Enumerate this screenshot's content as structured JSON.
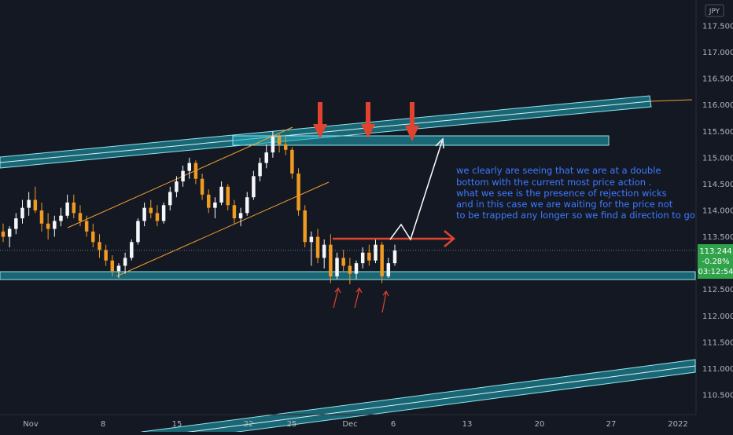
{
  "currency": "JPY",
  "price_badge": {
    "price": "113.244",
    "change": "-0.28%",
    "countdown": "03:12:54"
  },
  "annotation_lines": [
    "we clearly are seeing that we are at a double",
    " bottom with the current most price action .",
    " what we see is the presence of rejection wicks",
    "and in this case we are waiting for the price not",
    "to be trapped any longer so we  find a direction to go"
  ],
  "chart_data": {
    "type": "candlestick",
    "ylim": [
      110.3,
      117.75
    ],
    "y_ticks": [
      110.5,
      111.0,
      111.5,
      112.0,
      112.5,
      113.0,
      113.5,
      114.0,
      114.5,
      115.0,
      115.5,
      116.0,
      116.5,
      117.0,
      117.5
    ],
    "x_ticks": [
      "Nov",
      "8",
      "15",
      "22",
      "25",
      "Dec",
      "6",
      "13",
      "20",
      "27",
      "2022"
    ],
    "last_price": 113.244,
    "colors": {
      "up": "#f5f7fa",
      "down": "#f09a22",
      "zone": "#1fa7b8",
      "trendline": "#f0a030",
      "arrow_red": "#e0442f",
      "arrow_white": "#ffffff",
      "badge": "#2fa24a"
    },
    "candles": [
      [
        113.6,
        113.75,
        113.4,
        113.5
      ],
      [
        113.5,
        113.7,
        113.3,
        113.65
      ],
      [
        113.65,
        113.95,
        113.55,
        113.85
      ],
      [
        113.85,
        114.2,
        113.75,
        114.05
      ],
      [
        114.05,
        114.35,
        113.9,
        114.2
      ],
      [
        114.2,
        114.45,
        113.95,
        114.0
      ],
      [
        114.0,
        114.15,
        113.6,
        113.75
      ],
      [
        113.75,
        113.95,
        113.45,
        113.65
      ],
      [
        113.65,
        113.9,
        113.5,
        113.8
      ],
      [
        113.8,
        114.05,
        113.7,
        113.9
      ],
      [
        113.9,
        114.3,
        113.85,
        114.15
      ],
      [
        114.15,
        114.3,
        113.85,
        113.95
      ],
      [
        113.95,
        114.1,
        113.7,
        113.8
      ],
      [
        113.8,
        113.9,
        113.5,
        113.6
      ],
      [
        113.6,
        113.75,
        113.3,
        113.4
      ],
      [
        113.4,
        113.55,
        113.1,
        113.25
      ],
      [
        113.25,
        113.35,
        112.95,
        113.05
      ],
      [
        113.05,
        113.15,
        112.75,
        112.85
      ],
      [
        112.85,
        113.0,
        112.72,
        112.95
      ],
      [
        112.95,
        113.2,
        112.8,
        113.1
      ],
      [
        113.1,
        113.45,
        113.05,
        113.4
      ],
      [
        113.4,
        113.85,
        113.35,
        113.8
      ],
      [
        113.8,
        114.15,
        113.7,
        114.05
      ],
      [
        114.05,
        114.2,
        113.85,
        113.95
      ],
      [
        113.95,
        114.1,
        113.7,
        113.8
      ],
      [
        113.8,
        114.15,
        113.75,
        114.1
      ],
      [
        114.1,
        114.45,
        114.0,
        114.35
      ],
      [
        114.35,
        114.65,
        114.25,
        114.55
      ],
      [
        114.55,
        114.85,
        114.45,
        114.75
      ],
      [
        114.75,
        115.0,
        114.6,
        114.9
      ],
      [
        114.9,
        114.95,
        114.5,
        114.6
      ],
      [
        114.6,
        114.7,
        114.2,
        114.3
      ],
      [
        114.3,
        114.4,
        113.95,
        114.05
      ],
      [
        114.05,
        114.25,
        113.85,
        114.15
      ],
      [
        114.15,
        114.55,
        114.1,
        114.45
      ],
      [
        114.45,
        114.5,
        114.0,
        114.1
      ],
      [
        114.1,
        114.2,
        113.75,
        113.85
      ],
      [
        113.85,
        114.05,
        113.7,
        113.95
      ],
      [
        113.95,
        114.35,
        113.9,
        114.25
      ],
      [
        114.25,
        114.75,
        114.2,
        114.65
      ],
      [
        114.65,
        115.0,
        114.55,
        114.9
      ],
      [
        114.9,
        115.25,
        114.8,
        115.1
      ],
      [
        115.1,
        115.5,
        115.0,
        115.4
      ],
      [
        115.4,
        115.45,
        115.1,
        115.25
      ],
      [
        115.25,
        115.4,
        115.05,
        115.15
      ],
      [
        115.15,
        115.2,
        114.6,
        114.7
      ],
      [
        114.7,
        114.8,
        113.9,
        114.0
      ],
      [
        114.0,
        114.1,
        113.3,
        113.4
      ],
      [
        113.4,
        113.6,
        112.95,
        113.5
      ],
      [
        113.5,
        113.65,
        113.0,
        113.1
      ],
      [
        113.1,
        113.45,
        112.9,
        113.35
      ],
      [
        113.35,
        113.55,
        112.62,
        112.75
      ],
      [
        112.75,
        113.2,
        112.7,
        113.1
      ],
      [
        113.1,
        113.25,
        112.85,
        112.95
      ],
      [
        112.95,
        113.1,
        112.6,
        112.8
      ],
      [
        112.8,
        113.05,
        112.7,
        113.0
      ],
      [
        113.0,
        113.3,
        112.9,
        113.2
      ],
      [
        113.2,
        113.35,
        112.95,
        113.05
      ],
      [
        113.05,
        113.45,
        113.0,
        113.35
      ],
      [
        113.35,
        113.4,
        112.62,
        112.75
      ],
      [
        112.75,
        113.1,
        112.72,
        113.0
      ],
      [
        113.0,
        113.35,
        112.95,
        113.24
      ]
    ]
  }
}
